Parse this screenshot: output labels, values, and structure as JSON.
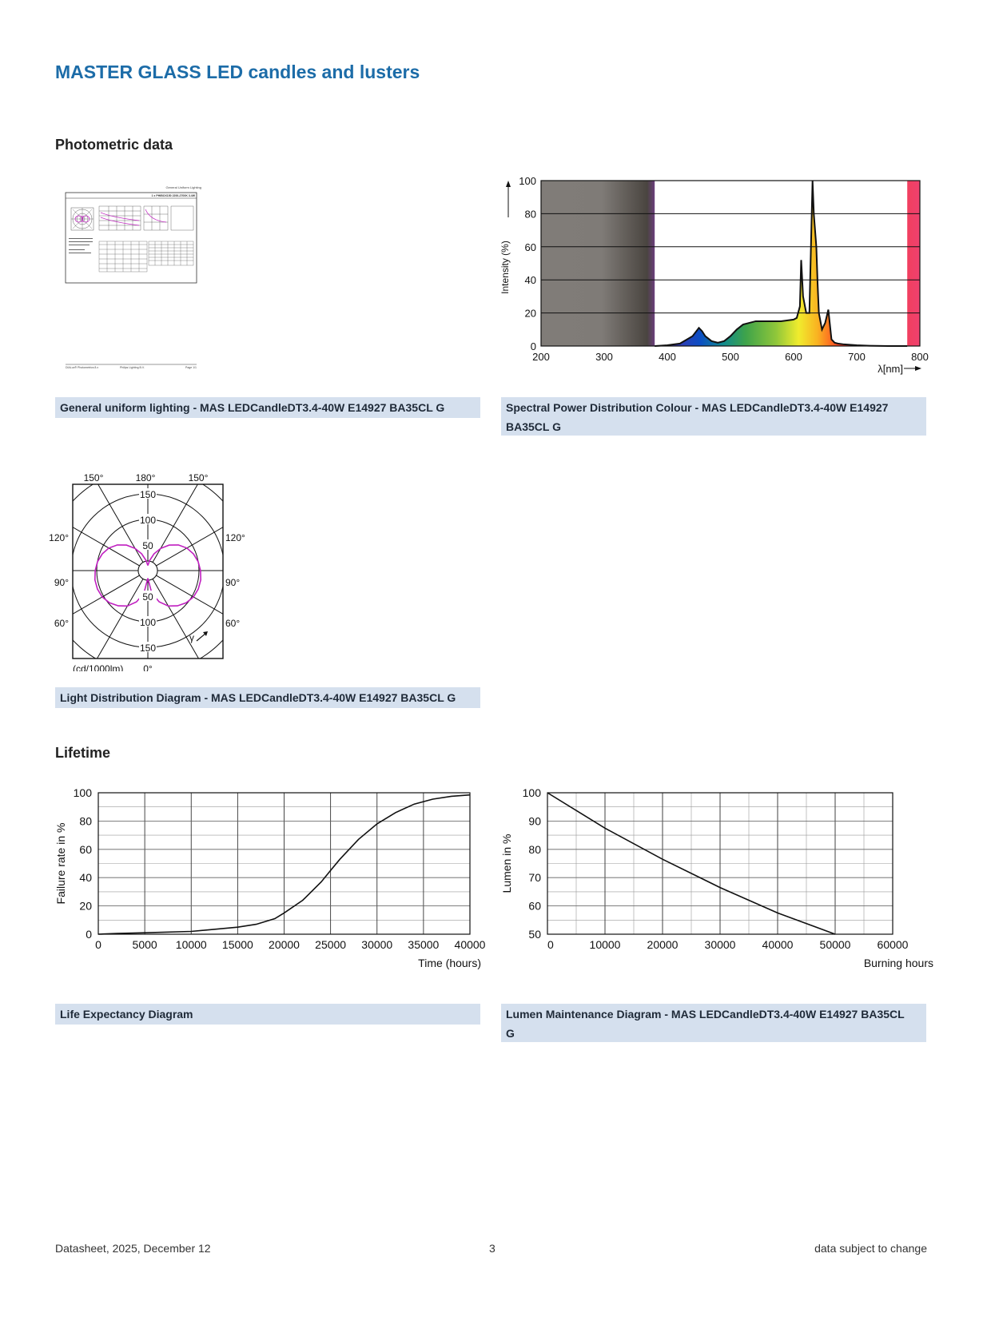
{
  "page": {
    "title": "MASTER GLASS LED candles and lusters"
  },
  "sections": {
    "photometric": "Photometric data",
    "lifetime": "Lifetime"
  },
  "thumbnail": {
    "header": "General Uniform Lighting",
    "subtitle": "1 x PHIBOX150 2200-2700K 3.4W",
    "footer_left": "DIALux® Photometrics 8.x",
    "footer_mid": "Philips Lighting B.V.",
    "footer_right": "Page 1/1"
  },
  "captions": {
    "general": "General uniform lighting - MAS LEDCandleDT3.4-40W E14927 BA35CL G",
    "spectral_line1": "Spectral Power Distribution Colour - MAS LEDCandleDT3.4-40W E14927",
    "spectral_line2": "BA35CL G",
    "light_dist": "Light Distribution Diagram - MAS LEDCandleDT3.4-40W E14927 BA35CL G",
    "life": "Life Expectancy Diagram",
    "lumen_line1": "Lumen Maintenance Diagram - MAS LEDCandleDT3.4-40W E14927 BA35CL",
    "lumen_line2": "G"
  },
  "footer": {
    "left": "Datasheet, 2025, December 12",
    "center": "3",
    "right": "data subject to change"
  },
  "chart_data": [
    {
      "id": "spectral",
      "type": "area",
      "xlabel": "λ[nm]",
      "ylabel": "Intensity (%)",
      "xlim": [
        200,
        800
      ],
      "ylim": [
        0,
        100
      ],
      "xticks": [
        200,
        300,
        400,
        500,
        600,
        700,
        800
      ],
      "yticks": [
        0,
        20,
        40,
        60,
        80,
        100
      ],
      "grid": true,
      "x": [
        380,
        400,
        420,
        440,
        450,
        455,
        460,
        470,
        480,
        490,
        500,
        510,
        520,
        540,
        560,
        580,
        600,
        605,
        610,
        612,
        615,
        620,
        625,
        630,
        632,
        634,
        636,
        638,
        640,
        645,
        650,
        655,
        660,
        665,
        670,
        680,
        700,
        720,
        750,
        780
      ],
      "y": [
        0,
        0.5,
        1.5,
        6,
        11,
        9,
        6,
        3,
        2,
        3,
        6,
        10,
        13,
        15,
        15,
        15,
        16,
        17,
        24,
        52,
        30,
        20,
        20,
        100,
        80,
        70,
        60,
        38,
        20,
        10,
        14,
        22,
        4,
        2,
        1.5,
        1,
        0.5,
        0.2,
        0,
        0
      ]
    },
    {
      "id": "light-distribution",
      "type": "polar",
      "unit_label": "(cd/1000lm)",
      "angle_labels": [
        "150°",
        "180°",
        "150°",
        "120°",
        "120°",
        "90°",
        "90°",
        "60°",
        "60°",
        "0°"
      ],
      "radial_labels": [
        "150",
        "100",
        "50",
        "50",
        "100",
        "150"
      ],
      "gamma_label": "γ",
      "series": [
        {
          "angles_deg": [
            0,
            10,
            20,
            30,
            40,
            50,
            60,
            70,
            80,
            90,
            100,
            110,
            120,
            130,
            140,
            150,
            160,
            170,
            180
          ],
          "values": [
            15,
            45,
            65,
            80,
            90,
            98,
            103,
            105,
            105,
            103,
            100,
            95,
            88,
            78,
            65,
            50,
            35,
            20,
            10
          ]
        }
      ]
    },
    {
      "id": "life-expectancy",
      "type": "line",
      "xlabel": "Time (hours)",
      "ylabel": "Failure rate in %",
      "xlim": [
        0,
        40000
      ],
      "ylim": [
        0,
        100
      ],
      "xticks": [
        0,
        5000,
        10000,
        15000,
        20000,
        25000,
        30000,
        35000,
        40000
      ],
      "yticks": [
        0,
        20,
        40,
        60,
        80,
        100
      ],
      "grid": true,
      "x": [
        0,
        2000,
        5000,
        10000,
        15000,
        17000,
        19000,
        20000,
        22000,
        24000,
        25000,
        26000,
        28000,
        30000,
        32000,
        34000,
        36000,
        38000,
        40000
      ],
      "y": [
        0,
        0.5,
        1,
        2,
        5,
        7,
        11,
        15,
        24,
        37,
        45,
        53,
        67,
        78,
        86,
        92,
        95.5,
        97.5,
        98.5
      ]
    },
    {
      "id": "lumen-maintenance",
      "type": "line",
      "xlabel": "Burning hours",
      "ylabel": "Lumen in %",
      "xlim": [
        0,
        60000
      ],
      "ylim": [
        50,
        100
      ],
      "xticks": [
        0,
        10000,
        20000,
        30000,
        40000,
        50000,
        60000
      ],
      "yticks": [
        50,
        60,
        70,
        80,
        90,
        100
      ],
      "grid": true,
      "x": [
        0,
        10000,
        20000,
        30000,
        40000,
        50000
      ],
      "y": [
        100,
        87.5,
        76.5,
        66.5,
        57.5,
        50
      ]
    }
  ]
}
